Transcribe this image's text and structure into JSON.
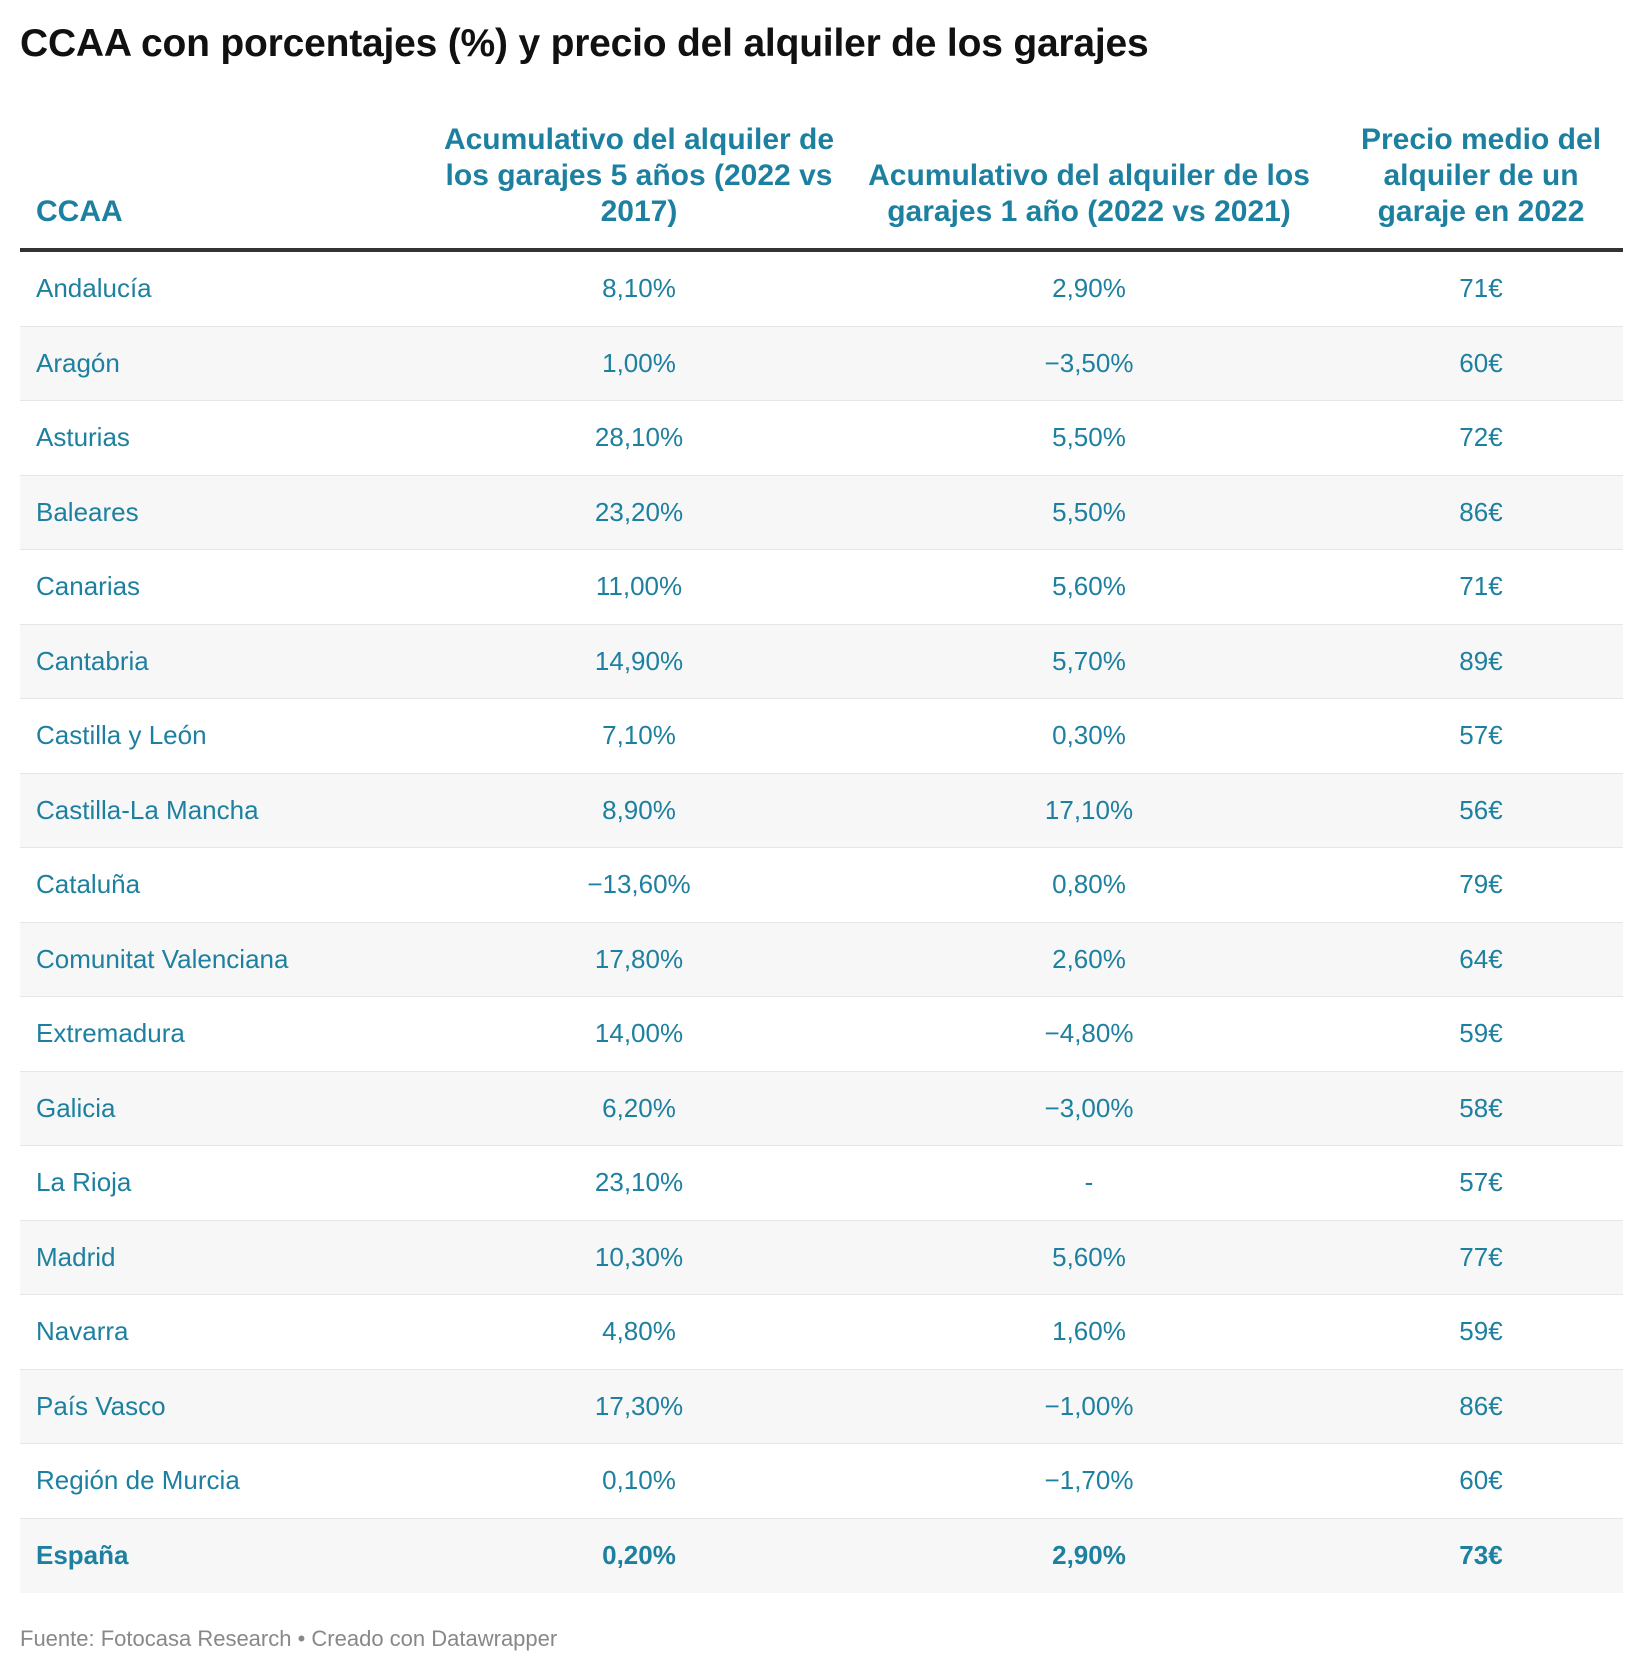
{
  "title": "CCAA con porcentajes (%) y precio del alquiler de los garajes",
  "chart_data": {
    "type": "table",
    "title": "CCAA con porcentajes (%) y precio del alquiler de los garajes",
    "columns": [
      "CCAA",
      "Acumulativo del alquiler de los garajes 5 años (2022 vs 2017)",
      "Acumulativo del alquiler de los garajes 1 año (2022 vs 2021)",
      "Precio medio del alquiler de un garaje en 2022"
    ],
    "rows": [
      [
        "Andalucía",
        "8,10%",
        "2,90%",
        "71€"
      ],
      [
        "Aragón",
        "1,00%",
        "−3,50%",
        "60€"
      ],
      [
        "Asturias",
        "28,10%",
        "5,50%",
        "72€"
      ],
      [
        "Baleares",
        "23,20%",
        "5,50%",
        "86€"
      ],
      [
        "Canarias",
        "11,00%",
        "5,60%",
        "71€"
      ],
      [
        "Cantabria",
        "14,90%",
        "5,70%",
        "89€"
      ],
      [
        "Castilla y León",
        "7,10%",
        "0,30%",
        "57€"
      ],
      [
        "Castilla-La Mancha",
        "8,90%",
        "17,10%",
        "56€"
      ],
      [
        "Cataluña",
        "−13,60%",
        "0,80%",
        "79€"
      ],
      [
        "Comunitat Valenciana",
        "17,80%",
        "2,60%",
        "64€"
      ],
      [
        "Extremadura",
        "14,00%",
        "−4,80%",
        "59€"
      ],
      [
        "Galicia",
        "6,20%",
        "−3,00%",
        "58€"
      ],
      [
        "La Rioja",
        "23,10%",
        "-",
        "57€"
      ],
      [
        "Madrid",
        "10,30%",
        "5,60%",
        "77€"
      ],
      [
        "Navarra",
        "4,80%",
        "1,60%",
        "59€"
      ],
      [
        "País Vasco",
        "17,30%",
        "−1,00%",
        "86€"
      ],
      [
        "Región de Murcia",
        "0,10%",
        "−1,70%",
        "60€"
      ]
    ],
    "total_row": [
      "España",
      "0,20%",
      "2,90%",
      "73€"
    ]
  },
  "footer": "Fuente: Fotocasa Research • Creado con Datawrapper",
  "colors": {
    "accent": "#1e80a0",
    "title": "#111111",
    "header_rule": "#333333",
    "alt_row": "#f7f7f7",
    "footer": "#888888"
  }
}
